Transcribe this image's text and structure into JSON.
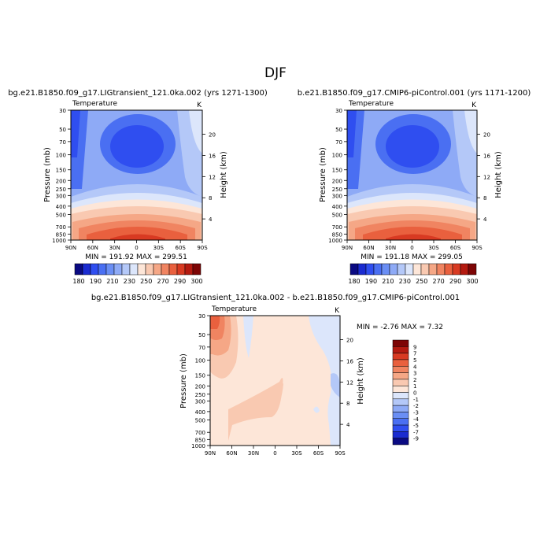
{
  "figure": {
    "title": "DJF"
  },
  "chart_data": [
    {
      "type": "heatmap",
      "subtitle": "bg.e21.B1850.f09_g17.LIGtransient_121.0ka.002 (yrs 1271-1300)",
      "field_label": "Temperature",
      "units_label": "K",
      "ylabel": "Pressure (mb)",
      "y2label": "Height (km)",
      "x_ticks": [
        "90N",
        "60N",
        "30N",
        "0",
        "30S",
        "60S",
        "90S"
      ],
      "y_ticks": [
        "30",
        "50",
        "70",
        "100",
        "150",
        "200",
        "250",
        "300",
        "400",
        "500",
        "700",
        "850",
        "1000"
      ],
      "y2_ticks": [
        "20",
        "16",
        "12",
        "8",
        "4"
      ],
      "stats": "MIN = 191.92   MAX = 299.51",
      "colorbar_ticks": [
        "180",
        "190",
        "210",
        "230",
        "250",
        "270",
        "290",
        "300"
      ]
    },
    {
      "type": "heatmap",
      "subtitle": "b.e21.B1850.f09_g17.CMIP6-piControl.001 (yrs 1171-1200)",
      "field_label": "Temperature",
      "units_label": "K",
      "ylabel": "Pressure (mb)",
      "y2label": "Height (km)",
      "x_ticks": [
        "90N",
        "60N",
        "30N",
        "0",
        "30S",
        "60S",
        "90S"
      ],
      "y_ticks": [
        "30",
        "50",
        "70",
        "100",
        "150",
        "200",
        "250",
        "300",
        "400",
        "500",
        "700",
        "850",
        "1000"
      ],
      "y2_ticks": [
        "20",
        "16",
        "12",
        "8",
        "4"
      ],
      "stats": "MIN = 191.18   MAX = 299.05",
      "colorbar_ticks": [
        "180",
        "190",
        "210",
        "230",
        "250",
        "270",
        "290",
        "300"
      ]
    },
    {
      "type": "heatmap",
      "subtitle": "bg.e21.B1850.f09_g17.LIGtransient_121.0ka.002 - b.e21.B1850.f09_g17.CMIP6-piControl.001",
      "field_label": "Temperature",
      "units_label": "K",
      "ylabel": "Pressure (mb)",
      "y2label": "Height (km)",
      "x_ticks": [
        "90N",
        "60N",
        "30N",
        "0",
        "30S",
        "60S",
        "90S"
      ],
      "y_ticks": [
        "30",
        "50",
        "70",
        "100",
        "150",
        "200",
        "250",
        "300",
        "400",
        "500",
        "700",
        "850",
        "1000"
      ],
      "y2_ticks": [
        "20",
        "16",
        "12",
        "8",
        "4"
      ],
      "stats": "MIN =  -2.76   MAX =   7.32",
      "colorbar_ticks": [
        "9",
        "7",
        "5",
        "4",
        "3",
        "2",
        "1",
        "0",
        "-1",
        "-2",
        "-3",
        "-4",
        "-5",
        "-7",
        "-9"
      ]
    }
  ],
  "colors": {
    "abs_scale": [
      "#0a0a82",
      "#1a2bd0",
      "#2f4ef0",
      "#4a6ff2",
      "#6a8ef4",
      "#8eaaf6",
      "#b4c8f8",
      "#dce6fb",
      "#fde6d8",
      "#f9c9b1",
      "#f5a786",
      "#f08461",
      "#e9603e",
      "#d83a22",
      "#b41a10",
      "#7d0505"
    ],
    "diff_scale": [
      "#7d0505",
      "#b41a10",
      "#d83a22",
      "#e9603e",
      "#f08461",
      "#f5a786",
      "#f9c9b1",
      "#fde6d8",
      "#dce6fb",
      "#b4c8f8",
      "#8eaaf6",
      "#6a8ef4",
      "#4a6ff2",
      "#2f4ef0",
      "#1a2bd0",
      "#0a0a82"
    ]
  }
}
